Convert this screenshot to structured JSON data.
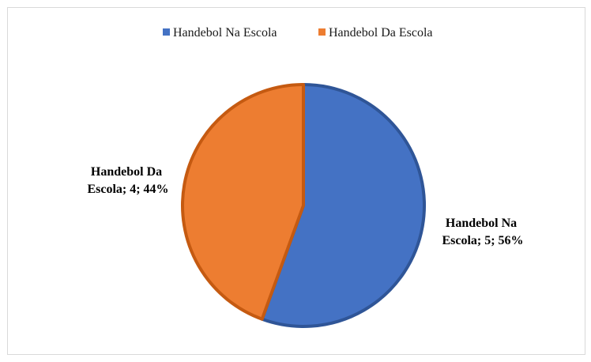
{
  "chart_data": {
    "type": "pie",
    "categories": [
      "Handebol Na Escola",
      "Handebol Da Escola"
    ],
    "values": [
      5,
      4
    ],
    "percentages": [
      "56%",
      "44%"
    ],
    "colors": [
      "#4472c4",
      "#ed7d31"
    ],
    "border_colors": [
      "#2f5597",
      "#c55a11"
    ],
    "legend_position": "top",
    "data_labels": [
      [
        "Handebol Na",
        "Escola; 5; 56%"
      ],
      [
        "Handebol Da",
        "Escola; 4; 44%"
      ]
    ],
    "start_angle_deg": 0,
    "direction": "clockwise"
  }
}
